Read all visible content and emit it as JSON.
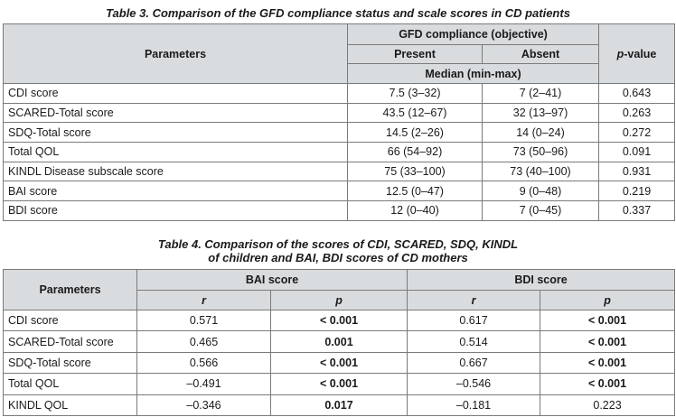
{
  "table3": {
    "title": "Table 3. Comparison of the GFD compliance status and scale scores in CD patients",
    "col_parameters": "Parameters",
    "col_group": "GFD compliance (objective)",
    "col_present": "Present",
    "col_absent": "Absent",
    "col_pvalue_p": "p",
    "col_pvalue_rest": "-value",
    "col_median": "Median (min-max)",
    "rows": [
      {
        "label": "CDI score",
        "present": "7.5 (3–32)",
        "absent": "7 (2–41)",
        "p": "0.643"
      },
      {
        "label": "SCARED-Total score",
        "present": "43.5 (12–67)",
        "absent": "32 (13–97)",
        "p": "0.263"
      },
      {
        "label": "SDQ-Total score",
        "present": "14.5 (2–26)",
        "absent": "14 (0–24)",
        "p": "0.272"
      },
      {
        "label": "Total QOL",
        "present": "66 (54–92)",
        "absent": "73 (50–96)",
        "p": "0.091"
      },
      {
        "label": "KINDL Disease subscale score",
        "present": "75 (33–100)",
        "absent": "73 (40–100)",
        "p": "0.931"
      },
      {
        "label": "BAI score",
        "present": "12.5 (0–47)",
        "absent": "9 (0–48)",
        "p": "0.219"
      },
      {
        "label": "BDI score",
        "present": "12 (0–40)",
        "absent": "7 (0–45)",
        "p": "0.337"
      }
    ]
  },
  "table4": {
    "title_line1": "Table 4. Comparison of the scores of CDI, SCARED, SDQ, KINDL",
    "title_line2": "of children and BAI, BDI scores of CD mothers",
    "col_parameters": "Parameters",
    "col_bai": "BAI score",
    "col_bdi": "BDI score",
    "col_r": "r",
    "col_p": "p",
    "rows": [
      {
        "label": "CDI score",
        "bai_r": "0.571",
        "bai_p": "< 0.001",
        "bdi_r": "0.617",
        "bdi_p": "< 0.001"
      },
      {
        "label": "SCARED-Total score",
        "bai_r": "0.465",
        "bai_p": "0.001",
        "bdi_r": "0.514",
        "bdi_p": "< 0.001"
      },
      {
        "label": "SDQ-Total score",
        "bai_r": "0.566",
        "bai_p": "< 0.001",
        "bdi_r": "0.667",
        "bdi_p": "< 0.001"
      },
      {
        "label": "Total QOL",
        "bai_r": "–0.491",
        "bai_p": "< 0.001",
        "bdi_r": "–0.546",
        "bdi_p": "< 0.001"
      },
      {
        "label": "KINDL QOL",
        "bai_r": "–0.346",
        "bai_p": "0.017",
        "bdi_r": "–0.181",
        "bdi_p": "0.223"
      }
    ],
    "bold_cells": [
      [
        "bai_p"
      ],
      [
        "bai_p",
        "bdi_p"
      ],
      [
        "bai_p",
        "bdi_p"
      ],
      [
        "bai_p",
        "bdi_p"
      ],
      [
        "bai_p"
      ]
    ],
    "bold_cells_row0": [
      "bai_p",
      "bdi_p"
    ]
  }
}
